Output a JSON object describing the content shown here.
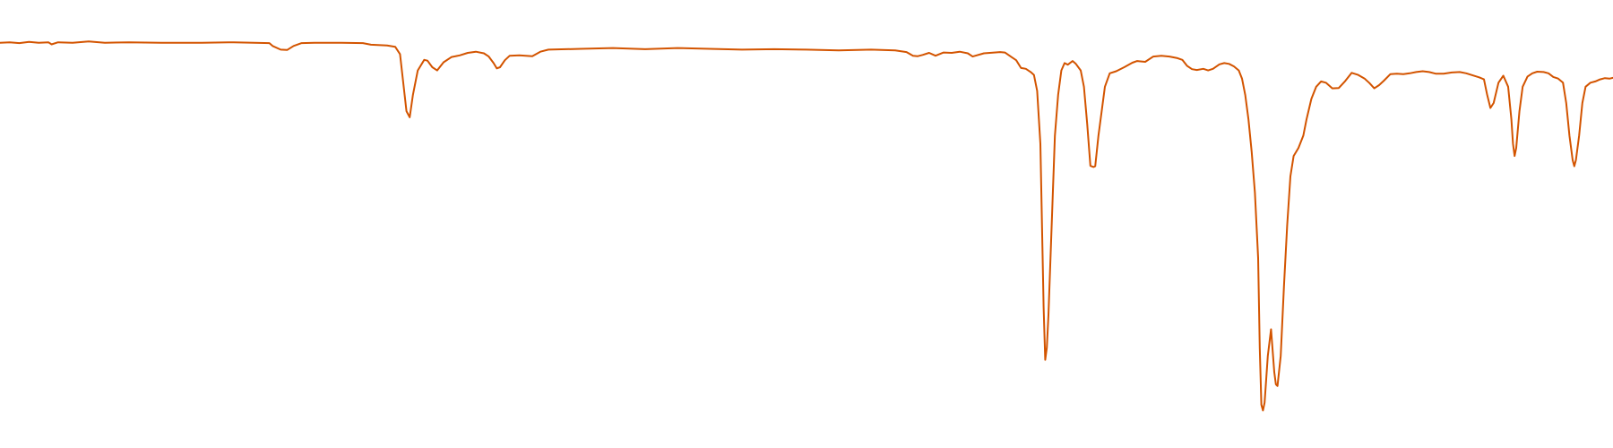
{
  "chart_data": {
    "type": "line",
    "title": "",
    "xlabel": "",
    "ylabel": "",
    "grid": false,
    "legend": "none",
    "xlim": [
      0,
      100
    ],
    "ylim": [
      0,
      100
    ],
    "series": [
      {
        "color": "#D35400",
        "points": [
          [
            0.0,
            94.8
          ],
          [
            0.6,
            94.9
          ],
          [
            1.2,
            94.7
          ],
          [
            1.8,
            95.0
          ],
          [
            2.4,
            94.8
          ],
          [
            3.0,
            94.9
          ],
          [
            3.2,
            94.4
          ],
          [
            3.6,
            94.9
          ],
          [
            4.5,
            94.8
          ],
          [
            5.5,
            95.1
          ],
          [
            6.5,
            94.8
          ],
          [
            8.0,
            94.9
          ],
          [
            10.0,
            94.8
          ],
          [
            12.5,
            94.8
          ],
          [
            14.5,
            94.9
          ],
          [
            16.7,
            94.7
          ],
          [
            16.9,
            94.0
          ],
          [
            17.4,
            93.1
          ],
          [
            17.8,
            93.0
          ],
          [
            18.2,
            94.0
          ],
          [
            18.7,
            94.7
          ],
          [
            19.5,
            94.8
          ],
          [
            21.0,
            94.8
          ],
          [
            22.5,
            94.7
          ],
          [
            23.0,
            94.3
          ],
          [
            24.0,
            94.1
          ],
          [
            24.5,
            93.8
          ],
          [
            24.8,
            92.0
          ],
          [
            25.0,
            85.0
          ],
          [
            25.2,
            78.0
          ],
          [
            25.4,
            76.5
          ],
          [
            25.6,
            82.0
          ],
          [
            25.9,
            88.0
          ],
          [
            26.3,
            90.6
          ],
          [
            26.5,
            90.4
          ],
          [
            26.8,
            88.8
          ],
          [
            27.1,
            88.0
          ],
          [
            27.5,
            90.0
          ],
          [
            28.0,
            91.3
          ],
          [
            28.5,
            91.7
          ],
          [
            29.0,
            92.3
          ],
          [
            29.5,
            92.6
          ],
          [
            30.0,
            92.2
          ],
          [
            30.3,
            91.4
          ],
          [
            30.6,
            89.8
          ],
          [
            30.8,
            88.5
          ],
          [
            31.0,
            88.8
          ],
          [
            31.3,
            90.5
          ],
          [
            31.6,
            91.6
          ],
          [
            32.2,
            91.7
          ],
          [
            32.6,
            91.6
          ],
          [
            33.0,
            91.5
          ],
          [
            33.5,
            92.6
          ],
          [
            34.0,
            93.1
          ],
          [
            36.0,
            93.3
          ],
          [
            38.0,
            93.5
          ],
          [
            40.0,
            93.2
          ],
          [
            42.0,
            93.5
          ],
          [
            44.0,
            93.3
          ],
          [
            46.0,
            93.1
          ],
          [
            48.0,
            93.2
          ],
          [
            50.0,
            93.1
          ],
          [
            52.0,
            92.9
          ],
          [
            54.0,
            93.1
          ],
          [
            55.5,
            92.9
          ],
          [
            56.2,
            92.5
          ],
          [
            56.6,
            91.6
          ],
          [
            56.9,
            91.5
          ],
          [
            57.2,
            91.8
          ],
          [
            57.6,
            92.3
          ],
          [
            58.0,
            91.6
          ],
          [
            58.5,
            92.4
          ],
          [
            59.0,
            92.3
          ],
          [
            59.5,
            92.6
          ],
          [
            60.0,
            92.2
          ],
          [
            60.3,
            91.4
          ],
          [
            61.0,
            92.2
          ],
          [
            62.0,
            92.5
          ],
          [
            62.3,
            92.4
          ],
          [
            62.7,
            91.3
          ],
          [
            63.0,
            90.5
          ],
          [
            63.3,
            88.6
          ],
          [
            63.6,
            88.4
          ],
          [
            63.9,
            87.6
          ],
          [
            64.1,
            86.9
          ],
          [
            64.3,
            83.0
          ],
          [
            64.5,
            70.0
          ],
          [
            64.6,
            50.0
          ],
          [
            64.7,
            30.0
          ],
          [
            64.8,
            17.0
          ],
          [
            64.9,
            20.0
          ],
          [
            65.0,
            28.0
          ],
          [
            65.2,
            50.0
          ],
          [
            65.4,
            72.0
          ],
          [
            65.6,
            82.0
          ],
          [
            65.8,
            88.0
          ],
          [
            66.0,
            89.8
          ],
          [
            66.2,
            89.4
          ],
          [
            66.5,
            90.3
          ],
          [
            66.7,
            89.6
          ],
          [
            67.0,
            88.0
          ],
          [
            67.2,
            84.0
          ],
          [
            67.4,
            75.0
          ],
          [
            67.6,
            64.6
          ],
          [
            67.8,
            64.3
          ],
          [
            67.9,
            64.5
          ],
          [
            68.1,
            72.0
          ],
          [
            68.3,
            78.0
          ],
          [
            68.5,
            84.0
          ],
          [
            68.8,
            87.3
          ],
          [
            69.2,
            87.8
          ],
          [
            69.7,
            88.8
          ],
          [
            70.2,
            89.9
          ],
          [
            70.5,
            90.3
          ],
          [
            71.0,
            90.1
          ],
          [
            71.5,
            91.4
          ],
          [
            72.0,
            91.6
          ],
          [
            72.5,
            91.4
          ],
          [
            73.0,
            91.0
          ],
          [
            73.3,
            90.6
          ],
          [
            73.6,
            89.1
          ],
          [
            73.9,
            88.3
          ],
          [
            74.2,
            88.1
          ],
          [
            74.6,
            88.4
          ],
          [
            74.9,
            88.0
          ],
          [
            75.2,
            88.4
          ],
          [
            75.6,
            89.5
          ],
          [
            75.9,
            89.8
          ],
          [
            76.2,
            89.6
          ],
          [
            76.5,
            89.0
          ],
          [
            76.8,
            88.0
          ],
          [
            77.0,
            86.0
          ],
          [
            77.2,
            82.0
          ],
          [
            77.4,
            76.0
          ],
          [
            77.6,
            68.0
          ],
          [
            77.8,
            58.0
          ],
          [
            78.0,
            42.0
          ],
          [
            78.1,
            20.0
          ],
          [
            78.2,
            6.0
          ],
          [
            78.3,
            4.6
          ],
          [
            78.4,
            6.5
          ],
          [
            78.6,
            18.0
          ],
          [
            78.8,
            24.5
          ],
          [
            79.0,
            14.0
          ],
          [
            79.1,
            11.0
          ],
          [
            79.2,
            10.6
          ],
          [
            79.4,
            18.0
          ],
          [
            79.6,
            35.0
          ],
          [
            79.8,
            50.0
          ],
          [
            80.0,
            62.0
          ],
          [
            80.2,
            67.0
          ],
          [
            80.5,
            69.0
          ],
          [
            80.8,
            72.0
          ],
          [
            81.0,
            76.0
          ],
          [
            81.3,
            81.0
          ],
          [
            81.6,
            84.0
          ],
          [
            81.9,
            85.3
          ],
          [
            82.2,
            85.0
          ],
          [
            82.6,
            83.6
          ],
          [
            83.0,
            83.7
          ],
          [
            83.4,
            85.4
          ],
          [
            83.8,
            87.4
          ],
          [
            84.2,
            86.9
          ],
          [
            84.6,
            86.0
          ],
          [
            84.9,
            84.9
          ],
          [
            85.2,
            83.6
          ],
          [
            85.5,
            84.4
          ],
          [
            85.8,
            85.5
          ],
          [
            86.2,
            87.1
          ],
          [
            86.6,
            87.2
          ],
          [
            87.0,
            87.1
          ],
          [
            87.4,
            87.3
          ],
          [
            87.8,
            87.6
          ],
          [
            88.2,
            87.8
          ],
          [
            88.6,
            87.6
          ],
          [
            89.0,
            87.2
          ],
          [
            89.5,
            87.2
          ],
          [
            90.0,
            87.5
          ],
          [
            90.5,
            87.6
          ],
          [
            90.9,
            87.3
          ],
          [
            91.3,
            86.8
          ],
          [
            91.7,
            86.3
          ],
          [
            92.0,
            85.8
          ],
          [
            92.2,
            82.0
          ],
          [
            92.4,
            78.8
          ],
          [
            92.6,
            80.0
          ],
          [
            92.9,
            85.0
          ],
          [
            93.2,
            86.7
          ],
          [
            93.5,
            84.0
          ],
          [
            93.7,
            76.0
          ],
          [
            93.8,
            70.0
          ],
          [
            93.9,
            67.0
          ],
          [
            94.0,
            69.0
          ],
          [
            94.2,
            78.0
          ],
          [
            94.4,
            84.0
          ],
          [
            94.7,
            86.5
          ],
          [
            95.0,
            87.3
          ],
          [
            95.3,
            87.7
          ],
          [
            95.7,
            87.6
          ],
          [
            96.0,
            87.3
          ],
          [
            96.3,
            86.4
          ],
          [
            96.6,
            86.0
          ],
          [
            96.9,
            85.0
          ],
          [
            97.1,
            80.0
          ],
          [
            97.3,
            72.0
          ],
          [
            97.5,
            66.0
          ],
          [
            97.6,
            64.5
          ],
          [
            97.7,
            66.0
          ],
          [
            97.9,
            72.0
          ],
          [
            98.1,
            80.0
          ],
          [
            98.3,
            84.0
          ],
          [
            98.6,
            85.0
          ],
          [
            98.9,
            85.3
          ],
          [
            99.2,
            85.8
          ],
          [
            99.5,
            86.1
          ],
          [
            99.8,
            86.0
          ],
          [
            100.0,
            86.2
          ]
        ]
      }
    ]
  }
}
